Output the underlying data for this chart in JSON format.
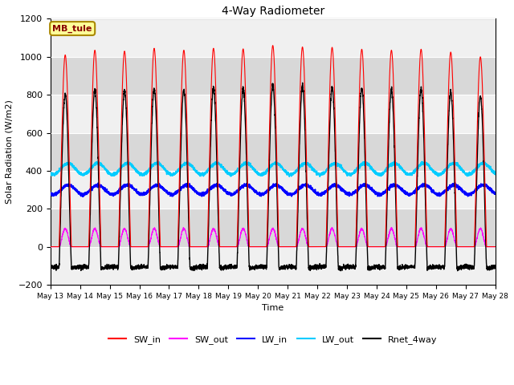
{
  "title": "4-Way Radiometer",
  "xlabel": "Time",
  "ylabel": "Solar Radiation (W/m2)",
  "ylim": [
    -200,
    1200
  ],
  "yticks": [
    -200,
    0,
    200,
    400,
    600,
    800,
    1000,
    1200
  ],
  "xtick_labels": [
    "May 13",
    "May 14",
    "May 15",
    "May 16",
    "May 17",
    "May 18",
    "May 19",
    "May 20",
    "May 21",
    "May 22",
    "May 23",
    "May 24",
    "May 25",
    "May 26",
    "May 27",
    "May 28"
  ],
  "legend_labels": [
    "SW_in",
    "SW_out",
    "LW_in",
    "LW_out",
    "Rnet_4way"
  ],
  "legend_colors": [
    "#ff0000",
    "#ff00ff",
    "#0000ff",
    "#00ccff",
    "#000000"
  ],
  "annotation_text": "MB_tule",
  "annotation_bg": "#ffff99",
  "annotation_border": "#aa8800",
  "annotation_text_color": "#880000",
  "lw_in_base": 300,
  "lw_out_base": 410,
  "background_color": "#e8e8e8",
  "band_color_light": "#f0f0f0",
  "band_color_dark": "#d8d8d8",
  "grid_color": "#ffffff",
  "days": 15,
  "figsize": [
    6.4,
    4.8
  ],
  "dpi": 100
}
